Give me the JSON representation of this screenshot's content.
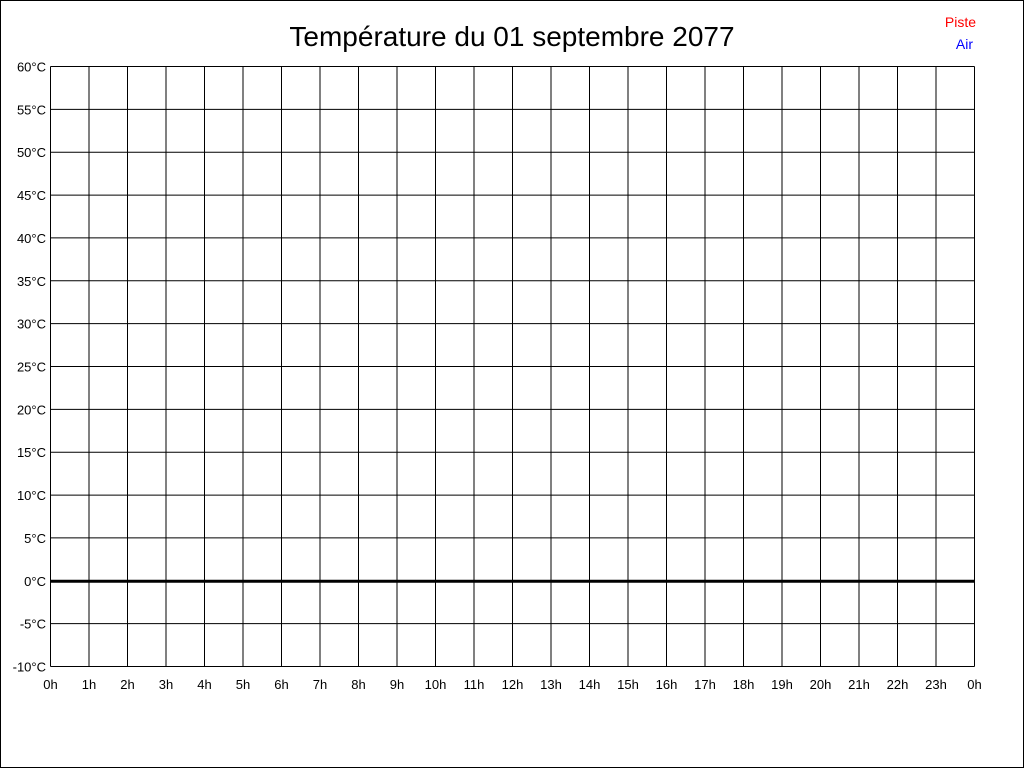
{
  "chart_data": {
    "type": "line",
    "title": "Température du 01 septembre 2077",
    "xlabel": "",
    "ylabel": "",
    "x_ticks": [
      "0h",
      "1h",
      "2h",
      "3h",
      "4h",
      "5h",
      "6h",
      "7h",
      "8h",
      "9h",
      "10h",
      "11h",
      "12h",
      "13h",
      "14h",
      "15h",
      "16h",
      "17h",
      "18h",
      "19h",
      "20h",
      "21h",
      "22h",
      "23h",
      "0h"
    ],
    "y_ticks": [
      "60°C",
      "55°C",
      "50°C",
      "45°C",
      "40°C",
      "35°C",
      "30°C",
      "25°C",
      "20°C",
      "15°C",
      "10°C",
      "5°C",
      "0°C",
      "-5°C",
      "-10°C"
    ],
    "ylim": [
      -10,
      60
    ],
    "xlim": [
      0,
      24
    ],
    "grid": true,
    "legend_position": "top-right",
    "series": [
      {
        "name": "Piste",
        "color": "#ff0000",
        "values": []
      },
      {
        "name": "Air",
        "color": "#0000ff",
        "values": []
      }
    ]
  }
}
